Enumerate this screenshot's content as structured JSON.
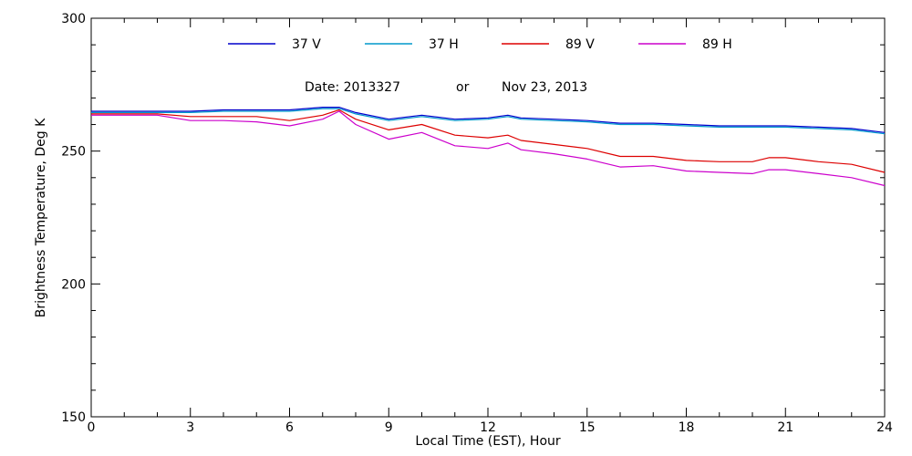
{
  "chart_data": {
    "type": "line",
    "title": "",
    "xlabel": "Local Time (EST), Hour",
    "ylabel": "Brightness Temperature, Deg K",
    "xlim": [
      0,
      24
    ],
    "ylim": [
      150,
      300
    ],
    "x_ticks": [
      "0",
      "3",
      "6",
      "9",
      "12",
      "15",
      "18",
      "21",
      "24"
    ],
    "y_ticks": [
      "150",
      "200",
      "250",
      "300"
    ],
    "grid": false,
    "legend_position": "top",
    "annotation": {
      "date_label": "Date: 2013327",
      "or_label": "or",
      "date_text": "Nov 23, 2013"
    },
    "x": [
      0,
      1,
      2,
      3,
      4,
      5,
      6,
      7,
      7.5,
      8,
      9,
      10,
      11,
      12,
      12.6,
      13,
      14,
      15,
      16,
      17,
      18,
      19,
      20,
      20.5,
      21,
      22,
      23,
      24
    ],
    "series": [
      {
        "name": "37 V",
        "color": "#0000cc",
        "values": [
          265,
          265,
          265,
          265,
          265.5,
          265.5,
          265.5,
          266.5,
          266.5,
          264.5,
          262,
          263.5,
          262,
          262.5,
          263.5,
          262.5,
          262,
          261.5,
          260.5,
          260.5,
          260,
          259.5,
          259.5,
          259.5,
          259.5,
          259,
          258.5,
          257
        ]
      },
      {
        "name": "37 H",
        "color": "#0099cc",
        "values": [
          264.5,
          264.5,
          264.5,
          264.5,
          265,
          265,
          265,
          266,
          266,
          264,
          261.5,
          263,
          261.5,
          262,
          263,
          262,
          261.5,
          261,
          260,
          260,
          259.5,
          259,
          259,
          259,
          259,
          258.5,
          258,
          256.5
        ]
      },
      {
        "name": "89 V",
        "color": "#dd0000",
        "values": [
          264,
          264,
          264,
          263,
          263,
          263,
          261.5,
          263.5,
          265.5,
          262,
          258,
          260,
          256,
          255,
          256,
          254,
          252.5,
          251,
          248,
          248,
          246.5,
          246,
          246,
          247.5,
          247.5,
          246,
          245,
          242
        ]
      },
      {
        "name": "89 H",
        "color": "#cc00cc",
        "values": [
          263.5,
          263.5,
          263.5,
          261.5,
          261.5,
          261,
          259.5,
          262,
          265,
          260,
          254.5,
          257,
          252,
          251,
          253,
          250.5,
          249,
          247,
          244,
          244.5,
          242.5,
          242,
          241.5,
          243,
          243,
          241.5,
          240,
          237
        ]
      }
    ]
  }
}
